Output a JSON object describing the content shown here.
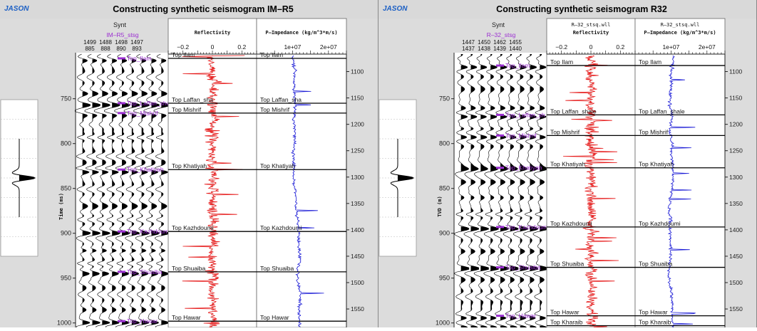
{
  "panels": [
    {
      "logo": "JASON",
      "title": "Constructing synthetic seismogram IM–R5",
      "synt_header": "Synt",
      "trace_label": "IM–R5_stsg",
      "trace_ids_top": [
        "1499",
        "1488",
        "1498",
        "1497"
      ],
      "trace_ids_bottom": [
        "885",
        "888",
        "890",
        "893"
      ],
      "reflectivity_header_top": "",
      "reflectivity_header": "Reflectivity",
      "impedance_header_top": "",
      "impedance_header": "P–Impedance (kg/m^3*m/s)",
      "time_axis_label": "Time (ms)",
      "time_ticks": [
        {
          "value": 750,
          "label": "750"
        },
        {
          "value": 800,
          "label": "800"
        },
        {
          "value": 850,
          "label": "850"
        },
        {
          "value": 900,
          "label": "900"
        },
        {
          "value": 950,
          "label": "950"
        },
        {
          "value": 1000,
          "label": "1000"
        }
      ],
      "depth_ticks": [
        {
          "value": 1100,
          "label": "1100"
        },
        {
          "value": 1150,
          "label": "1150"
        },
        {
          "value": 1200,
          "label": "1200"
        },
        {
          "value": 1250,
          "label": "1250"
        },
        {
          "value": 1300,
          "label": "1300"
        },
        {
          "value": 1350,
          "label": "1350"
        },
        {
          "value": 1400,
          "label": "1400"
        },
        {
          "value": 1450,
          "label": "1450"
        },
        {
          "value": 1500,
          "label": "1500"
        },
        {
          "value": 1550,
          "label": "1550"
        }
      ],
      "reflectivity_ticks": [
        {
          "value": -0.2,
          "label": "−0.2"
        },
        {
          "value": 0,
          "label": "0"
        },
        {
          "value": 0.2,
          "label": "0.2"
        }
      ],
      "impedance_ticks": [
        {
          "value": 10000000,
          "label": "1e+07"
        },
        {
          "value": 20000000,
          "label": "2e+07"
        }
      ],
      "horizons": [
        {
          "name": "Top_Ilam",
          "log_label": "Top Ilam",
          "time": 705
        },
        {
          "name": "Top_Laffan_sha",
          "log_label": "Top Laffan_sha",
          "time": 755
        },
        {
          "name": "Top_Mishrif",
          "log_label": "Top Mishrif",
          "time": 766
        },
        {
          "name": "Top_Khatiyah",
          "log_label": "Top Khatiyah",
          "time": 829
        },
        {
          "name": "Top_Kazhdoumi",
          "log_label": "Top Kazhdoumi",
          "time": 898
        },
        {
          "name": "Top_Shuaiba",
          "log_label": "Top Shuaiba",
          "time": 943
        },
        {
          "name": "Top_Hawar",
          "log_label": "Top Hawar",
          "time": 998
        }
      ]
    },
    {
      "logo": "JASON",
      "title": "Constructing synthetic seismogram R32",
      "synt_header": "Synt",
      "trace_label": "R–32_stsg",
      "trace_ids_top": [
        "1447",
        "1450",
        "1462",
        "1455"
      ],
      "trace_ids_bottom": [
        "1437",
        "1438",
        "1439",
        "1440"
      ],
      "reflectivity_header_top": "R–32_stsq.wll",
      "reflectivity_header": "Reflectivity",
      "impedance_header_top": "R–32_stsq.wll",
      "impedance_header": "P–Impedance (kg/m^3*m/s)",
      "time_axis_label": "TVD (m)",
      "time_ticks": [
        {
          "value": 750,
          "label": "750"
        },
        {
          "value": 800,
          "label": "800"
        },
        {
          "value": 850,
          "label": "850"
        },
        {
          "value": 900,
          "label": "900"
        },
        {
          "value": 950,
          "label": "950"
        },
        {
          "value": 1000,
          "label": "1000"
        }
      ],
      "depth_ticks": [
        {
          "value": 1100,
          "label": "1100"
        },
        {
          "value": 1150,
          "label": "1150"
        },
        {
          "value": 1200,
          "label": "1200"
        },
        {
          "value": 1250,
          "label": "1250"
        },
        {
          "value": 1300,
          "label": "1300"
        },
        {
          "value": 1350,
          "label": "1350"
        },
        {
          "value": 1400,
          "label": "1400"
        },
        {
          "value": 1450,
          "label": "1450"
        },
        {
          "value": 1500,
          "label": "1500"
        },
        {
          "value": 1550,
          "label": "1550"
        }
      ],
      "reflectivity_ticks": [
        {
          "value": -0.2,
          "label": "−0.2"
        },
        {
          "value": 0,
          "label": "0"
        },
        {
          "value": 0.2,
          "label": "0.2"
        }
      ],
      "impedance_ticks": [
        {
          "value": 10000000,
          "label": "1e+07"
        },
        {
          "value": 20000000,
          "label": "2e+07"
        }
      ],
      "horizons": [
        {
          "name": "Top_Ilam",
          "log_label": "Top Ilam",
          "time": 713
        },
        {
          "name": "Top_Laffan_sh",
          "log_label": "Top Laffan_shale",
          "time": 768
        },
        {
          "name": "Top_Mishrif",
          "log_label": "Top Mishrif",
          "time": 791
        },
        {
          "name": "Top_Khatiyah",
          "log_label": "Top Khatiyah",
          "time": 827
        },
        {
          "name": "Top_Kazhdoumi",
          "log_label": "Top Kazhdoumi",
          "time": 893
        },
        {
          "name": "Top_Shuaiba",
          "log_label": "Top Shuaiba",
          "time": 938
        },
        {
          "name": "Top_Hawar",
          "log_label": "Top Hawar",
          "time": 992
        },
        {
          "name": "",
          "log_label": "Top Kharaib",
          "time": 1003
        }
      ]
    }
  ],
  "chart_data": {
    "type": "line",
    "title": "Constructing synthetic seismogram IM–R5 / Constructing synthetic seismogram R32",
    "time_range": [
      705,
      1005
    ],
    "depth_range": [
      1075,
      1585
    ],
    "reflectivity_xlim": [
      -0.3,
      0.3
    ],
    "impedance_xlim": [
      0,
      25000000
    ],
    "series": [
      {
        "name": "Reflectivity",
        "color": "#e61919"
      },
      {
        "name": "P–Impedance",
        "color": "#1c1cd6"
      }
    ]
  },
  "colors": {
    "background": "#ffffff",
    "panel_bg": "#dcdcdc",
    "horizon_label": "#9b2fd1",
    "reflectivity": "#e61919",
    "impedance": "#1c1cd6",
    "title_bar": "#d9d9d9",
    "logo": "#1b5fc4"
  }
}
